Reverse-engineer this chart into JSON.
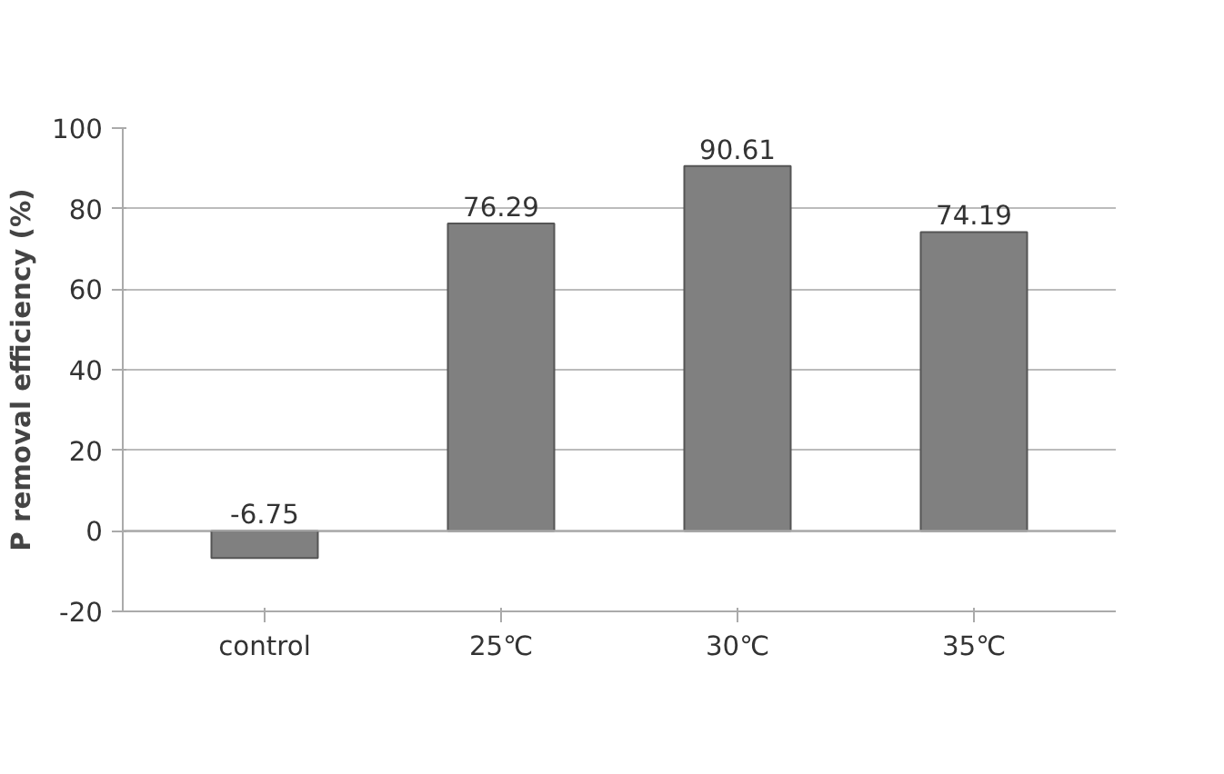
{
  "chart_data": {
    "type": "bar",
    "categories": [
      "control",
      "25℃",
      "30℃",
      "35℃"
    ],
    "values": [
      -6.75,
      76.29,
      90.61,
      74.19
    ],
    "color": "#808080",
    "ylabel": "P removal efficiency (%)",
    "ylim": [
      -20,
      100
    ],
    "yticks": [
      -20,
      0,
      20,
      40,
      60,
      80,
      100
    ],
    "grid": "y",
    "data_labels": true
  }
}
